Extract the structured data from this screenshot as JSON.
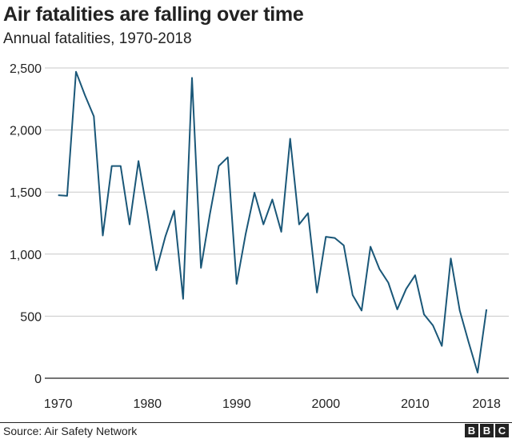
{
  "header": {
    "title": "Air fatalities are falling over time",
    "subtitle": "Annual fatalities, 1970-2018"
  },
  "footer": {
    "source": "Source: Air Safety Network",
    "brand": [
      "B",
      "B",
      "C"
    ]
  },
  "chart_data": {
    "type": "line",
    "title": "Air fatalities are falling over time",
    "subtitle": "Annual fatalities, 1970-2018",
    "xlabel": "",
    "ylabel": "",
    "xlim": [
      1968.5,
      2020.5
    ],
    "ylim": [
      0,
      2500
    ],
    "grid": true,
    "y_ticks": [
      0,
      500,
      1000,
      1500,
      2000,
      2500
    ],
    "y_tick_labels": [
      "0",
      "500",
      "1,000",
      "1,500",
      "2,000",
      "2,500"
    ],
    "x_ticks": [
      1970,
      1980,
      1990,
      2000,
      2010,
      2018
    ],
    "x_tick_labels": [
      "1970",
      "1980",
      "1990",
      "2000",
      "2010",
      "2018"
    ],
    "line_color": "#1a5778",
    "series": [
      {
        "x": [
          1970,
          1971,
          1972,
          1973,
          1974,
          1975,
          1976,
          1977,
          1978,
          1979,
          1980,
          1981,
          1982,
          1983,
          1984,
          1985,
          1986,
          1987,
          1988,
          1989,
          1990,
          1991,
          1992,
          1993,
          1994,
          1995,
          1996,
          1997,
          1998,
          1999,
          2000,
          2001,
          2002,
          2003,
          2004,
          2005,
          2006,
          2007,
          2008,
          2009,
          2010,
          2011,
          2012,
          2013,
          2014,
          2015,
          2016,
          2017,
          2018
        ],
        "values": [
          1475,
          1470,
          2470,
          2280,
          2110,
          1150,
          1710,
          1710,
          1240,
          1750,
          1330,
          870,
          1140,
          1350,
          640,
          2420,
          890,
          1320,
          1710,
          1780,
          760,
          1160,
          1495,
          1240,
          1440,
          1180,
          1930,
          1240,
          1330,
          690,
          1140,
          1130,
          1070,
          670,
          545,
          1060,
          880,
          770,
          555,
          720,
          830,
          515,
          425,
          260,
          965,
          545,
          290,
          45,
          555
        ]
      }
    ]
  }
}
